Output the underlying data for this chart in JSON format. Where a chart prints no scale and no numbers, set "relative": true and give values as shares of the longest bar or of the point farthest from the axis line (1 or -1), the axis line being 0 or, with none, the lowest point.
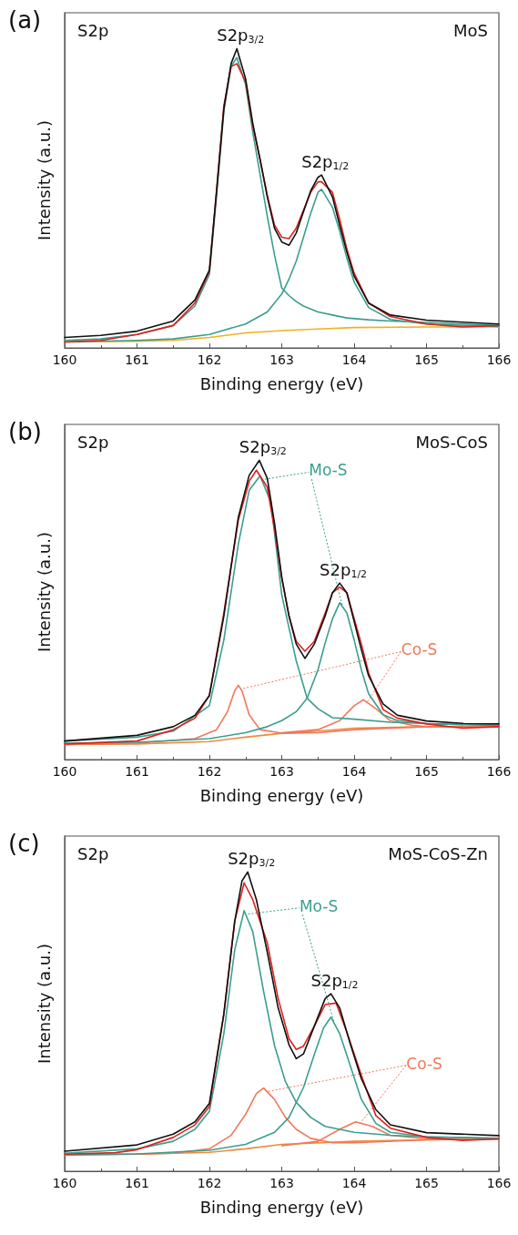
{
  "chart_data": [
    {
      "type": "line",
      "title": "(a)",
      "xlabel": "Binding energy (eV)",
      "ylabel": "Intensity (a.u.)",
      "relative": true,
      "xlim": [
        160,
        166
      ],
      "xticks": [
        160,
        161,
        162,
        163,
        164,
        165,
        166
      ],
      "grid": false,
      "marker": "none",
      "line_style": "solid",
      "annotations": [
        "S2p",
        "MoS",
        {
          "text": "S2p$_{3/2}$",
          "x": 162.38,
          "y": 1
        },
        {
          "text": "S2p$_{1/2}$",
          "x": 163.55,
          "y": 0.578
        }
      ],
      "series": [
        {
          "color": "#f2b01e",
          "x": [
            160,
            161,
            161.5,
            162,
            162.5,
            163,
            163.5,
            164,
            165,
            166
          ],
          "values": [
            0.02,
            0.022,
            0.025,
            0.035,
            0.05,
            0.058,
            0.063,
            0.068,
            0.07,
            0.07
          ]
        },
        {
          "color": "#3a9e8f",
          "x": [
            160,
            160.5,
            161,
            161.5,
            161.8,
            162,
            162.1,
            162.2,
            162.3,
            162.38,
            162.5,
            162.6,
            162.7,
            162.8,
            162.9,
            163,
            163.1,
            163.2,
            163.3,
            163.4,
            163.5,
            163.7,
            163.9,
            164.2,
            164.5,
            165,
            165.5,
            166
          ],
          "values": [
            0.025,
            0.03,
            0.045,
            0.075,
            0.14,
            0.245,
            0.51,
            0.79,
            0.94,
            0.97,
            0.88,
            0.72,
            0.58,
            0.44,
            0.31,
            0.2,
            0.175,
            0.155,
            0.14,
            0.13,
            0.12,
            0.11,
            0.1,
            0.094,
            0.09,
            0.085,
            0.08,
            0.075
          ]
        },
        {
          "color": "#3a9e8f",
          "x": [
            160,
            161,
            161.5,
            162,
            162.5,
            162.8,
            163,
            163.1,
            163.2,
            163.3,
            163.4,
            163.5,
            163.55,
            163.7,
            163.8,
            163.9,
            164,
            164.2,
            164.5,
            165,
            165.5,
            166
          ],
          "values": [
            0.02,
            0.025,
            0.03,
            0.045,
            0.08,
            0.12,
            0.18,
            0.23,
            0.29,
            0.37,
            0.45,
            0.52,
            0.53,
            0.47,
            0.39,
            0.3,
            0.22,
            0.135,
            0.095,
            0.08,
            0.075,
            0.072
          ]
        },
        {
          "color": "#e0201b",
          "x": [
            160,
            160.5,
            161,
            161.5,
            161.8,
            162,
            162.1,
            162.2,
            162.3,
            162.38,
            162.5,
            162.6,
            162.7,
            162.8,
            162.9,
            163,
            163.1,
            163.2,
            163.3,
            163.4,
            163.5,
            163.55,
            163.7,
            163.8,
            163.9,
            164,
            164.2,
            164.5,
            165,
            165.5,
            166
          ],
          "values": [
            0.02,
            0.025,
            0.045,
            0.075,
            0.15,
            0.255,
            0.53,
            0.81,
            0.94,
            0.95,
            0.89,
            0.74,
            0.63,
            0.51,
            0.41,
            0.37,
            0.365,
            0.4,
            0.46,
            0.52,
            0.555,
            0.555,
            0.52,
            0.43,
            0.33,
            0.25,
            0.15,
            0.105,
            0.08,
            0.07,
            0.075
          ]
        },
        {
          "color": "#111111",
          "x": [
            160,
            160.5,
            161,
            161.5,
            161.8,
            162,
            162.1,
            162.2,
            162.3,
            162.38,
            162.5,
            162.6,
            162.7,
            162.8,
            162.9,
            163,
            163.1,
            163.2,
            163.3,
            163.4,
            163.5,
            163.55,
            163.7,
            163.8,
            163.9,
            164,
            164.2,
            164.5,
            165,
            165.5,
            166
          ],
          "values": [
            0.035,
            0.042,
            0.056,
            0.09,
            0.16,
            0.26,
            0.525,
            0.8,
            0.95,
            1,
            0.9,
            0.75,
            0.63,
            0.505,
            0.4,
            0.354,
            0.343,
            0.384,
            0.455,
            0.525,
            0.57,
            0.578,
            0.505,
            0.41,
            0.32,
            0.24,
            0.15,
            0.11,
            0.093,
            0.086,
            0.08
          ]
        }
      ]
    },
    {
      "type": "line",
      "title": "(b)",
      "xlabel": "Binding energy (eV)",
      "ylabel": "Intensity (a.u.)",
      "relative": true,
      "xlim": [
        160,
        166
      ],
      "xticks": [
        160,
        161,
        162,
        163,
        164,
        165,
        166
      ],
      "grid": false,
      "marker": "none",
      "line_style": "solid",
      "annotations": [
        "S2p",
        "MoS-CoS",
        {
          "text": "S2p$_{3/2}$",
          "x": 162.69,
          "y": 1
        },
        {
          "text": "S2p$_{1/2}$",
          "x": 163.8,
          "y": 0.59
        },
        {
          "text": "Mo-S",
          "x": 163.64,
          "y": 0.967
        },
        {
          "text": "Co-S",
          "x": 164.9,
          "y": 0.367
        }
      ],
      "series": [
        {
          "color": "#f08a3c",
          "x": [
            160,
            161,
            162,
            162.5,
            163,
            163.5,
            164,
            165,
            166
          ],
          "values": [
            0.05,
            0.052,
            0.06,
            0.075,
            0.088,
            0.095,
            0.105,
            0.11,
            0.11
          ]
        },
        {
          "color": "#f0785a",
          "x": [
            160,
            161,
            161.8,
            162.1,
            162.25,
            162.35,
            162.4,
            162.45,
            162.55,
            162.7,
            163,
            163.5,
            164,
            165,
            166
          ],
          "values": [
            0.05,
            0.055,
            0.07,
            0.1,
            0.16,
            0.23,
            0.248,
            0.23,
            0.15,
            0.1,
            0.088,
            0.09,
            0.1,
            0.11,
            0.11
          ]
        },
        {
          "color": "#f0785a",
          "x": [
            163,
            163.5,
            163.8,
            164,
            164.13,
            164.3,
            164.5,
            164.8,
            165,
            166
          ],
          "values": [
            0.09,
            0.1,
            0.13,
            0.18,
            0.2,
            0.17,
            0.13,
            0.115,
            0.11,
            0.11
          ]
        },
        {
          "color": "#3a9e8f",
          "x": [
            160,
            161,
            161.5,
            162,
            162.2,
            162.4,
            162.55,
            162.7,
            162.85,
            163,
            163.1,
            163.2,
            163.35,
            163.5,
            163.7,
            164,
            164.5,
            165,
            166
          ],
          "values": [
            0.062,
            0.075,
            0.095,
            0.18,
            0.4,
            0.72,
            0.9,
            0.948,
            0.86,
            0.55,
            0.44,
            0.33,
            0.205,
            0.17,
            0.14,
            0.135,
            0.125,
            0.12,
            0.114
          ]
        },
        {
          "color": "#3a9e8f",
          "x": [
            160,
            161,
            162,
            162.5,
            162.8,
            163,
            163.2,
            163.35,
            163.5,
            163.6,
            163.7,
            163.8,
            163.9,
            164,
            164.1,
            164.2,
            164.4,
            164.6,
            165,
            166
          ],
          "values": [
            0.055,
            0.058,
            0.07,
            0.09,
            0.11,
            0.13,
            0.16,
            0.205,
            0.3,
            0.39,
            0.47,
            0.524,
            0.49,
            0.4,
            0.3,
            0.22,
            0.15,
            0.13,
            0.12,
            0.114
          ]
        },
        {
          "color": "#e0201b",
          "x": [
            160,
            161,
            161.5,
            161.8,
            162,
            162.2,
            162.4,
            162.55,
            162.65,
            162.8,
            162.9,
            163,
            163.1,
            163.2,
            163.32,
            163.45,
            163.6,
            163.7,
            163.8,
            163.9,
            164,
            164.1,
            164.2,
            164.4,
            164.6,
            165,
            165.5,
            166
          ],
          "values": [
            0.052,
            0.062,
            0.1,
            0.138,
            0.214,
            0.49,
            0.8,
            0.93,
            0.967,
            0.91,
            0.77,
            0.605,
            0.48,
            0.395,
            0.362,
            0.395,
            0.49,
            0.557,
            0.576,
            0.557,
            0.471,
            0.386,
            0.29,
            0.167,
            0.138,
            0.119,
            0.105,
            0.11
          ]
        },
        {
          "color": "#111111",
          "x": [
            160,
            161,
            161.5,
            161.8,
            162,
            162.2,
            162.4,
            162.55,
            162.69,
            162.8,
            162.9,
            163,
            163.1,
            163.2,
            163.32,
            163.45,
            163.6,
            163.7,
            163.8,
            163.9,
            164,
            164.1,
            164.2,
            164.4,
            164.6,
            165,
            165.5,
            166
          ],
          "values": [
            0.062,
            0.081,
            0.11,
            0.148,
            0.214,
            0.48,
            0.81,
            0.95,
            1,
            0.94,
            0.79,
            0.61,
            0.48,
            0.386,
            0.338,
            0.386,
            0.48,
            0.557,
            0.59,
            0.557,
            0.462,
            0.367,
            0.28,
            0.186,
            0.148,
            0.129,
            0.121,
            0.119
          ]
        }
      ]
    },
    {
      "type": "line",
      "title": "(c)",
      "xlabel": "Binding energy (eV)",
      "ylabel": "Intensity (a.u.)",
      "relative": true,
      "xlim": [
        160,
        166
      ],
      "xticks": [
        160,
        161,
        162,
        163,
        164,
        165,
        166
      ],
      "grid": false,
      "marker": "none",
      "line_style": "solid",
      "annotations": [
        "S2p",
        "MoS-CoS-Zn",
        {
          "text": "S2p$_{3/2}$",
          "x": 162.53,
          "y": 1
        },
        {
          "text": "S2p$_{1/2}$",
          "x": 163.68,
          "y": 0.593
        },
        {
          "text": "Mo-S",
          "x": 163.51,
          "y": 0.887
        },
        {
          "text": "Co-S",
          "x": 164.97,
          "y": 0.36
        }
      ],
      "series": [
        {
          "color": "#f08a3c",
          "x": [
            160,
            161,
            162,
            162.5,
            163,
            164,
            165,
            166
          ],
          "values": [
            0.055,
            0.057,
            0.063,
            0.075,
            0.09,
            0.1,
            0.105,
            0.108
          ]
        },
        {
          "color": "#f0785a",
          "x": [
            160,
            161,
            161.5,
            162,
            162.3,
            162.5,
            162.65,
            162.75,
            162.9,
            163.05,
            163.2,
            163.4,
            163.7,
            164,
            165,
            166
          ],
          "values": [
            0.055,
            0.057,
            0.06,
            0.075,
            0.12,
            0.19,
            0.26,
            0.278,
            0.24,
            0.18,
            0.14,
            0.11,
            0.095,
            0.095,
            0.105,
            0.108
          ]
        },
        {
          "color": "#f0785a",
          "x": [
            163,
            163.5,
            163.8,
            164.02,
            164.25,
            164.5,
            165,
            166
          ],
          "values": [
            0.085,
            0.1,
            0.14,
            0.165,
            0.15,
            0.12,
            0.108,
            0.108
          ]
        },
        {
          "color": "#3a9e8f",
          "x": [
            160,
            161,
            161.5,
            161.8,
            162,
            162.2,
            162.35,
            162.48,
            162.6,
            162.75,
            162.9,
            163.05,
            163.2,
            163.4,
            163.6,
            164,
            164.5,
            165,
            166
          ],
          "values": [
            0.06,
            0.075,
            0.1,
            0.14,
            0.2,
            0.46,
            0.74,
            0.871,
            0.8,
            0.6,
            0.42,
            0.3,
            0.23,
            0.18,
            0.15,
            0.13,
            0.12,
            0.115,
            0.11
          ]
        },
        {
          "color": "#3a9e8f",
          "x": [
            160,
            161,
            162,
            162.5,
            162.9,
            163.1,
            163.3,
            163.45,
            163.58,
            163.68,
            163.8,
            163.95,
            164.1,
            164.3,
            164.5,
            165,
            166
          ],
          "values": [
            0.055,
            0.058,
            0.07,
            0.09,
            0.13,
            0.18,
            0.28,
            0.39,
            0.48,
            0.515,
            0.46,
            0.35,
            0.24,
            0.16,
            0.13,
            0.115,
            0.11
          ]
        },
        {
          "color": "#e0201b",
          "x": [
            160,
            160.7,
            161,
            161.5,
            161.8,
            162,
            162.2,
            162.35,
            162.48,
            162.6,
            162.8,
            162.95,
            163.1,
            163.2,
            163.3,
            163.45,
            163.6,
            163.75,
            163.9,
            164.1,
            164.3,
            164.5,
            165,
            165.5,
            166
          ],
          "values": [
            0.057,
            0.062,
            0.072,
            0.113,
            0.155,
            0.216,
            0.526,
            0.835,
            0.964,
            0.907,
            0.763,
            0.577,
            0.443,
            0.407,
            0.418,
            0.485,
            0.557,
            0.562,
            0.464,
            0.32,
            0.186,
            0.144,
            0.113,
            0.103,
            0.108
          ]
        },
        {
          "color": "#111111",
          "x": [
            160,
            161,
            161.5,
            161.8,
            162,
            162.2,
            162.35,
            162.45,
            162.53,
            162.65,
            162.8,
            162.95,
            163.1,
            163.2,
            163.3,
            163.45,
            163.6,
            163.68,
            163.8,
            163.95,
            164.1,
            164.3,
            164.5,
            165,
            166
          ],
          "values": [
            0.067,
            0.088,
            0.124,
            0.165,
            0.227,
            0.526,
            0.835,
            0.97,
            1,
            0.907,
            0.732,
            0.546,
            0.423,
            0.376,
            0.392,
            0.485,
            0.577,
            0.593,
            0.546,
            0.423,
            0.309,
            0.206,
            0.155,
            0.129,
            0.119
          ]
        }
      ]
    }
  ]
}
